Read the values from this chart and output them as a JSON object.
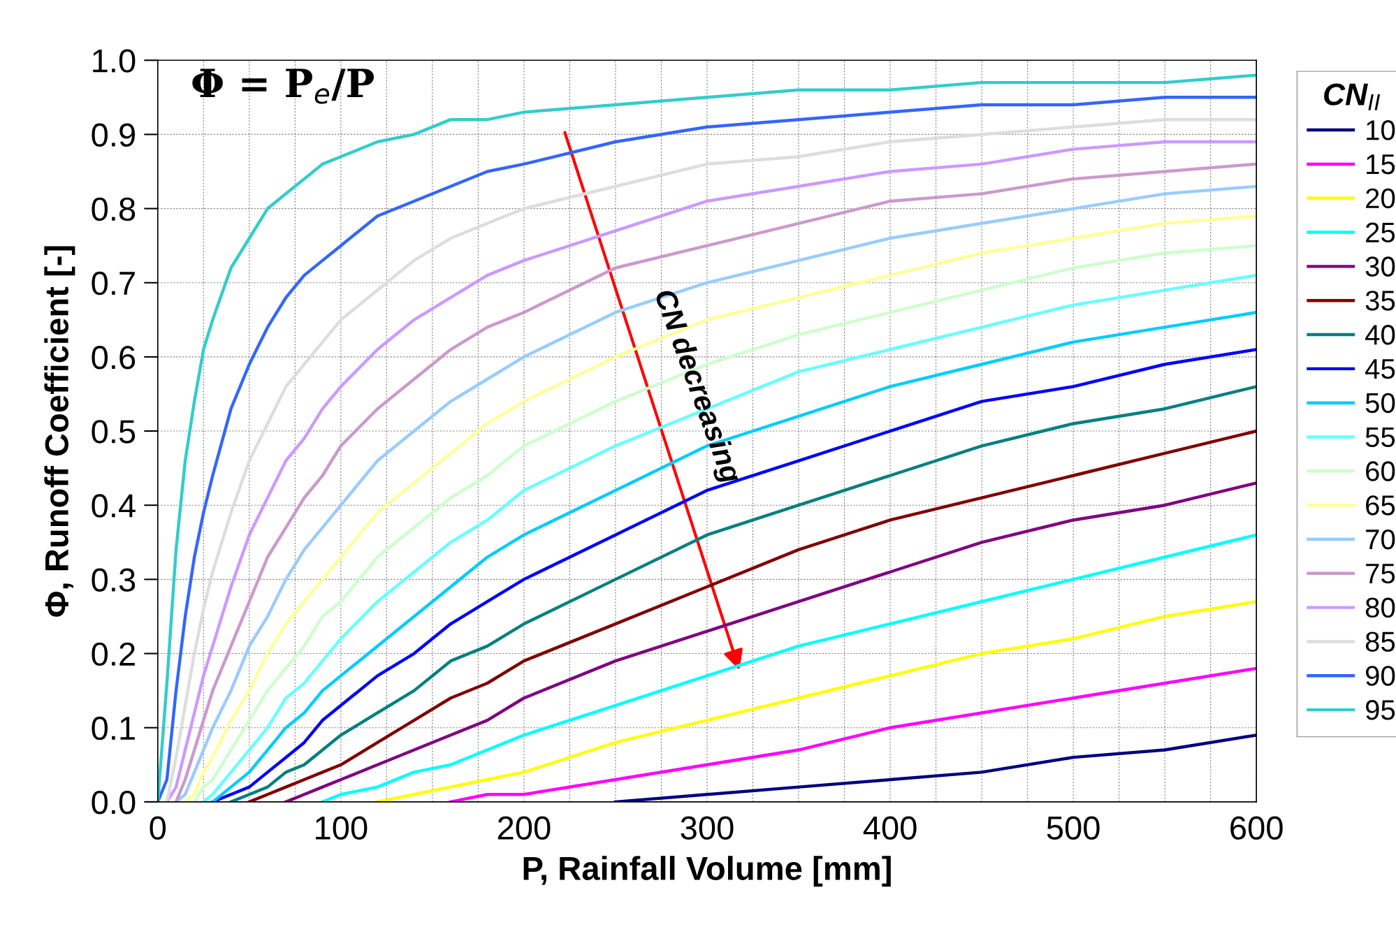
{
  "chart_data": {
    "type": "line",
    "xlabel": "P, Rainfall Volume [mm]",
    "ylabel": "Φ, Runoff Coefficient [-]",
    "legend_title": "CN$_{II}$",
    "legend": "right",
    "grid": true,
    "marker": "none",
    "line_style": "solid",
    "xlim": [
      0,
      600
    ],
    "ylim": [
      0,
      1.0
    ],
    "xticks": [
      0,
      {
        "value": 25,
        "label": null
      },
      {
        "value": 50,
        "label": null
      },
      {
        "value": 75,
        "label": null
      },
      100,
      {
        "value": 125,
        "label": null
      },
      {
        "value": 150,
        "label": null
      },
      {
        "value": 175,
        "label": null
      },
      200,
      {
        "value": 225,
        "label": null
      },
      {
        "value": 250,
        "label": null
      },
      {
        "value": 275,
        "label": null
      },
      300,
      {
        "value": 325,
        "label": null
      },
      {
        "value": 350,
        "label": null
      },
      {
        "value": 375,
        "label": null
      },
      400,
      {
        "value": 425,
        "label": null
      },
      {
        "value": 450,
        "label": null
      },
      {
        "value": 475,
        "label": null
      },
      500,
      {
        "value": 525,
        "label": null
      },
      {
        "value": 550,
        "label": null
      },
      {
        "value": 575,
        "label": null
      },
      600
    ],
    "yticks": [
      {
        "value": 0,
        "label": "0.0"
      },
      0.1,
      0.2,
      0.3,
      0.4,
      0.5,
      0.6,
      0.7,
      0.8,
      0.9,
      {
        "value": 1.0,
        "label": "1.0"
      }
    ],
    "annotations": [
      "Φ = P$_{e}$/P",
      "CN decreasing"
    ],
    "x": [
      0,
      5,
      10,
      15,
      20,
      25,
      30,
      40,
      50,
      60,
      70,
      80,
      90,
      100,
      120,
      140,
      160,
      180,
      200,
      250,
      300,
      350,
      400,
      450,
      500,
      550,
      600
    ],
    "series": [
      {
        "name": "10",
        "color": "#000080",
        "values": [
          null,
          null,
          null,
          null,
          null,
          null,
          null,
          null,
          null,
          null,
          null,
          null,
          null,
          null,
          null,
          null,
          null,
          null,
          null,
          0,
          0.01,
          0.02,
          0.03,
          0.04,
          0.06,
          0.07,
          0.09
        ]
      },
      {
        "name": "15",
        "color": "#ff00ff",
        "values": [
          null,
          null,
          null,
          null,
          null,
          null,
          null,
          null,
          null,
          null,
          null,
          null,
          null,
          null,
          null,
          null,
          0,
          0.01,
          0.01,
          0.03,
          0.05,
          0.07,
          0.1,
          0.12,
          0.14,
          0.16,
          0.18
        ]
      },
      {
        "name": "20",
        "color": "#ffff00",
        "values": [
          null,
          null,
          null,
          null,
          null,
          null,
          null,
          null,
          null,
          null,
          null,
          null,
          null,
          null,
          0,
          0.01,
          0.02,
          0.03,
          0.04,
          0.08,
          0.11,
          0.14,
          0.17,
          0.2,
          0.22,
          0.25,
          0.27
        ]
      },
      {
        "name": "25",
        "color": "#00ffff",
        "values": [
          null,
          null,
          null,
          null,
          null,
          null,
          null,
          null,
          null,
          null,
          null,
          null,
          0,
          0.01,
          0.02,
          0.04,
          0.05,
          0.07,
          0.09,
          0.13,
          0.17,
          0.21,
          0.24,
          0.27,
          0.3,
          0.33,
          0.36
        ]
      },
      {
        "name": "30",
        "color": "#800080",
        "values": [
          null,
          null,
          null,
          null,
          null,
          null,
          null,
          null,
          null,
          null,
          0,
          0.01,
          0.02,
          0.03,
          0.05,
          0.07,
          0.09,
          0.11,
          0.14,
          0.19,
          0.23,
          0.27,
          0.31,
          0.35,
          0.38,
          0.4,
          0.43
        ]
      },
      {
        "name": "35",
        "color": "#800000",
        "values": [
          null,
          null,
          null,
          null,
          null,
          null,
          null,
          null,
          0,
          0.01,
          0.02,
          0.03,
          0.04,
          0.05,
          0.08,
          0.11,
          0.14,
          0.16,
          0.19,
          0.24,
          0.29,
          0.34,
          0.38,
          0.41,
          0.44,
          0.47,
          0.5
        ]
      },
      {
        "name": "40",
        "color": "#008080",
        "values": [
          null,
          null,
          null,
          null,
          null,
          null,
          null,
          0,
          0.01,
          0.02,
          0.04,
          0.05,
          0.07,
          0.09,
          0.12,
          0.15,
          0.19,
          0.21,
          0.24,
          0.3,
          0.36,
          0.4,
          0.44,
          0.48,
          0.51,
          0.53,
          0.56
        ]
      },
      {
        "name": "45",
        "color": "#0000ff",
        "values": [
          null,
          null,
          null,
          null,
          null,
          null,
          0,
          0.01,
          0.02,
          0.04,
          0.06,
          0.08,
          0.11,
          0.13,
          0.17,
          0.2,
          0.24,
          0.27,
          0.3,
          0.36,
          0.42,
          0.46,
          0.5,
          0.54,
          0.56,
          0.59,
          0.61
        ]
      },
      {
        "name": "50",
        "color": "#00ccff",
        "values": [
          null,
          null,
          null,
          null,
          null,
          null,
          0,
          0.02,
          0.04,
          0.07,
          0.1,
          0.12,
          0.15,
          0.17,
          0.21,
          0.25,
          0.29,
          0.33,
          0.36,
          0.42,
          0.48,
          0.52,
          0.56,
          0.59,
          0.62,
          0.64,
          0.66
        ]
      },
      {
        "name": "55",
        "color": "#66ffff",
        "values": [
          null,
          null,
          null,
          null,
          null,
          0,
          0.01,
          0.04,
          0.07,
          0.1,
          0.14,
          0.16,
          0.19,
          0.22,
          0.27,
          0.31,
          0.35,
          0.38,
          0.42,
          0.48,
          0.53,
          0.58,
          0.61,
          0.64,
          0.67,
          0.69,
          0.71
        ]
      },
      {
        "name": "60",
        "color": "#ccffcc",
        "values": [
          null,
          null,
          null,
          null,
          0,
          0.02,
          0.03,
          0.07,
          0.11,
          0.15,
          0.18,
          0.21,
          0.25,
          0.27,
          0.33,
          0.37,
          0.41,
          0.44,
          0.48,
          0.54,
          0.59,
          0.63,
          0.66,
          0.69,
          0.72,
          0.74,
          0.75
        ]
      },
      {
        "name": "65",
        "color": "#ffff99",
        "values": [
          null,
          null,
          null,
          0,
          0.01,
          0.04,
          0.06,
          0.11,
          0.15,
          0.2,
          0.24,
          0.27,
          0.3,
          0.33,
          0.39,
          0.43,
          0.47,
          0.51,
          0.54,
          0.6,
          0.65,
          0.68,
          0.71,
          0.74,
          0.76,
          0.78,
          0.79
        ]
      },
      {
        "name": "70",
        "color": "#99ccff",
        "values": [
          null,
          null,
          0,
          0.01,
          0.04,
          0.07,
          0.1,
          0.15,
          0.21,
          0.25,
          0.3,
          0.34,
          0.37,
          0.4,
          0.46,
          0.5,
          0.54,
          0.57,
          0.6,
          0.66,
          0.7,
          0.73,
          0.76,
          0.78,
          0.8,
          0.82,
          0.83
        ]
      },
      {
        "name": "75",
        "color": "#cc99cc",
        "values": [
          null,
          null,
          0,
          0.03,
          0.07,
          0.11,
          0.15,
          0.21,
          0.27,
          0.33,
          0.37,
          0.41,
          0.44,
          0.48,
          0.53,
          0.57,
          0.61,
          0.64,
          0.66,
          0.72,
          0.75,
          0.78,
          0.81,
          0.82,
          0.84,
          0.85,
          0.86
        ]
      },
      {
        "name": "80",
        "color": "#cc99ff",
        "values": [
          null,
          0,
          0.02,
          0.07,
          0.12,
          0.17,
          0.21,
          0.29,
          0.36,
          0.41,
          0.46,
          0.49,
          0.53,
          0.56,
          0.61,
          0.65,
          0.68,
          0.71,
          0.73,
          0.77,
          0.81,
          0.83,
          0.85,
          0.86,
          0.88,
          0.89,
          0.89
        ]
      },
      {
        "name": "85",
        "color": "#dddddd",
        "values": [
          null,
          0,
          0.06,
          0.13,
          0.2,
          0.26,
          0.31,
          0.39,
          0.46,
          0.51,
          0.56,
          0.59,
          0.62,
          0.65,
          0.69,
          0.73,
          0.76,
          0.78,
          0.8,
          0.83,
          0.86,
          0.87,
          0.89,
          0.9,
          0.91,
          0.92,
          0.92
        ]
      },
      {
        "name": "90",
        "color": "#3366ff",
        "values": [
          0,
          0.03,
          0.15,
          0.25,
          0.33,
          0.39,
          0.44,
          0.53,
          0.59,
          0.64,
          0.68,
          0.71,
          0.73,
          0.75,
          0.79,
          0.81,
          0.83,
          0.85,
          0.86,
          0.89,
          0.91,
          0.92,
          0.93,
          0.94,
          0.94,
          0.95,
          0.95
        ]
      },
      {
        "name": "95",
        "color": "#33cccc",
        "values": [
          0,
          0.16,
          0.34,
          0.46,
          0.54,
          0.61,
          0.65,
          0.72,
          0.76,
          0.8,
          0.82,
          0.84,
          0.86,
          0.87,
          0.89,
          0.9,
          0.92,
          0.92,
          0.93,
          0.94,
          0.95,
          0.96,
          0.96,
          0.97,
          0.97,
          0.97,
          0.98
        ]
      }
    ]
  }
}
